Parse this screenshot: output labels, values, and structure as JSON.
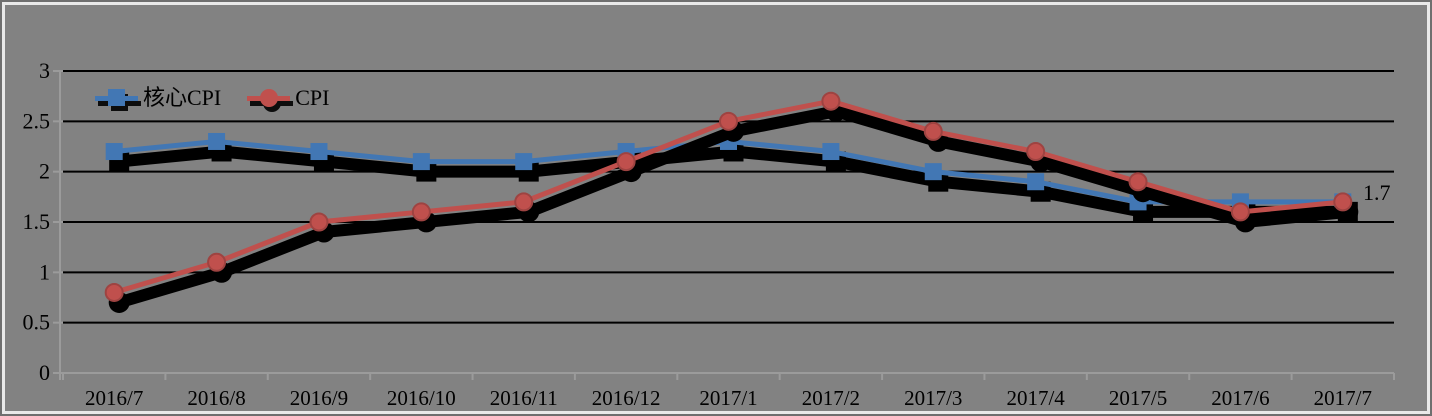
{
  "chart_data": {
    "type": "line",
    "title": "",
    "categories": [
      "2016/7",
      "2016/8",
      "2016/9",
      "2016/10",
      "2016/11",
      "2016/12",
      "2017/1",
      "2017/2",
      "2017/3",
      "2017/4",
      "2017/5",
      "2017/6",
      "2017/7"
    ],
    "series": [
      {
        "name": "核心CPI",
        "marker": "square",
        "color": "#4277B4",
        "marker_stroke": "#35659E",
        "values": [
          2.2,
          2.3,
          2.2,
          2.1,
          2.1,
          2.2,
          2.3,
          2.2,
          2.0,
          1.9,
          1.7,
          1.7,
          1.7
        ]
      },
      {
        "name": "CPI",
        "marker": "circle",
        "color": "#C0504D",
        "marker_stroke": "#9E4341",
        "values": [
          0.8,
          1.1,
          1.5,
          1.6,
          1.7,
          2.1,
          2.5,
          2.7,
          2.4,
          2.2,
          1.9,
          1.6,
          1.7
        ]
      }
    ],
    "xlabel": "",
    "ylabel": "",
    "ylim": [
      0,
      3
    ],
    "y_ticks": [
      {
        "label": "3",
        "value": 3
      },
      {
        "label": "2.5",
        "value": 2.5
      },
      {
        "label": "2",
        "value": 2
      },
      {
        "label": "1.5",
        "value": 1.5
      },
      {
        "label": "1",
        "value": 1
      },
      {
        "label": "0.5",
        "value": 0.5
      },
      {
        "label": "0",
        "value": 0
      }
    ],
    "grid": true,
    "legend_position": "inside-top-left",
    "end_label": "1.7",
    "colors": {
      "background": "#828282",
      "frame_light": "#E9E9E9",
      "frame_dark": "#6F6F6F",
      "gridline": "#000000",
      "axis": "#9B9B9B",
      "text": "#000000",
      "shadow": "#000000"
    }
  }
}
